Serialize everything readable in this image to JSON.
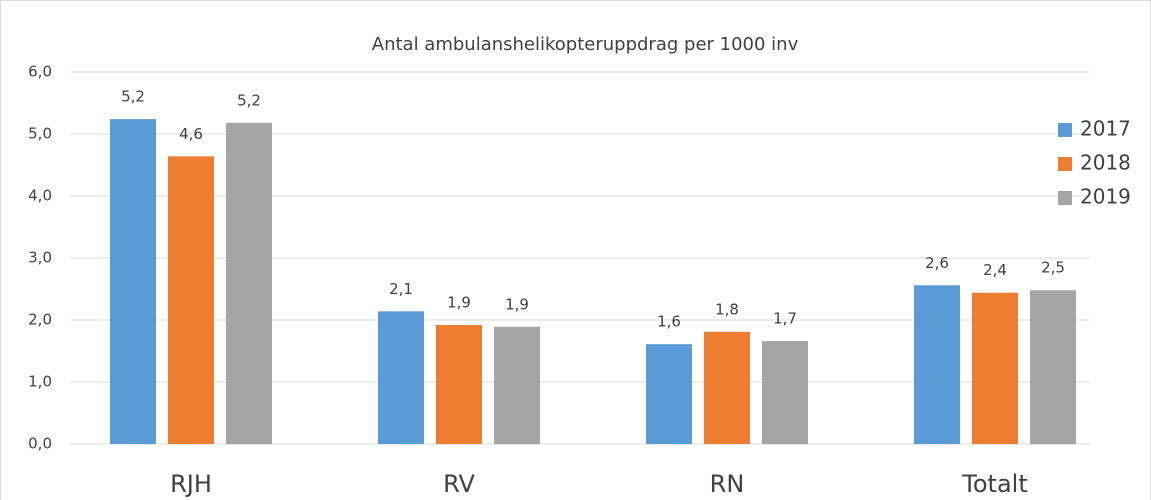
{
  "chart_data": {
    "type": "bar",
    "title": "Antal ambulanshelikopteruppdrag  per 1000 inv",
    "categories": [
      "RJH",
      "RV",
      "RN",
      "Totalt"
    ],
    "series": [
      {
        "name": "2017",
        "color": "#5b9bd5",
        "values": [
          5.24,
          2.14,
          1.61,
          2.56
        ],
        "value_labels": [
          "5,2",
          "2,1",
          "1,6",
          "2,6"
        ]
      },
      {
        "name": "2018",
        "color": "#ed7d31",
        "values": [
          4.64,
          1.92,
          1.81,
          2.44
        ],
        "value_labels": [
          "4,6",
          "1,9",
          "1,8",
          "2,4"
        ]
      },
      {
        "name": "2019",
        "color": "#a5a5a5",
        "values": [
          5.18,
          1.89,
          1.66,
          2.48
        ],
        "value_labels": [
          "5,2",
          "1,9",
          "1,7",
          "2,5"
        ]
      }
    ],
    "ylim": [
      0,
      6
    ],
    "yticks": [
      {
        "value": 0,
        "label": "0,0"
      },
      {
        "value": 1,
        "label": "1,0"
      },
      {
        "value": 2,
        "label": "2,0"
      },
      {
        "value": 3,
        "label": "3,0"
      },
      {
        "value": 4,
        "label": "4,0"
      },
      {
        "value": 5,
        "label": "5,0"
      },
      {
        "value": 6,
        "label": "6,0"
      }
    ],
    "grid": true,
    "legend": "right"
  }
}
